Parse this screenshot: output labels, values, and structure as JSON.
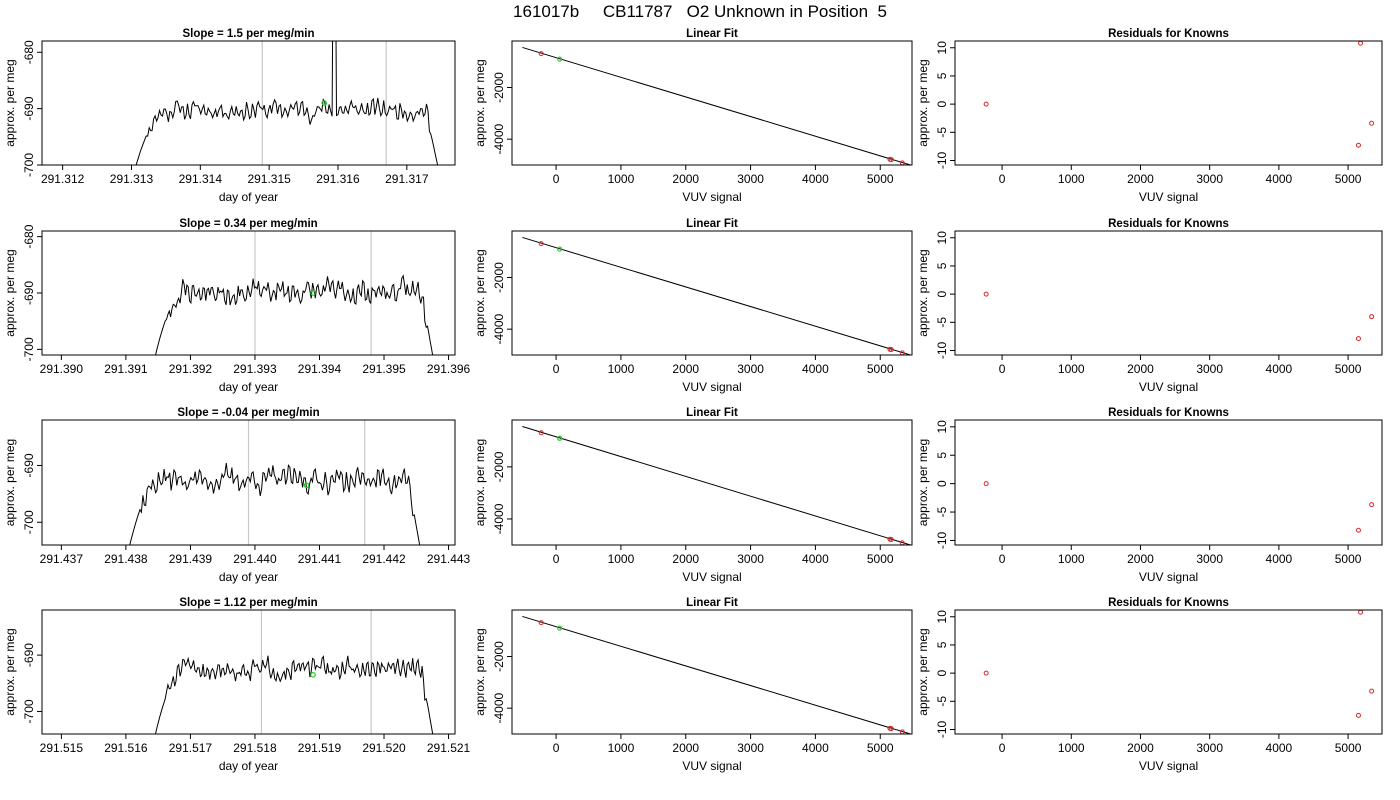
{
  "figure": {
    "title": "161017b     CB11787   O2 Unknown in Position  5"
  },
  "chart_data": [
    {
      "type": "line",
      "panel": "timeseries",
      "row": 0,
      "title": "Slope =  1.5  per meg/min",
      "xlabel": "day of year",
      "ylabel": "approx. per meg",
      "xlim": [
        291.3117,
        291.3177
      ],
      "ylim": [
        -700,
        -678
      ],
      "xticks": [
        "291.312",
        "291.313",
        "291.314",
        "291.315",
        "291.316",
        "291.317"
      ],
      "xtick_values": [
        291.312,
        291.313,
        291.314,
        291.315,
        291.316,
        291.317
      ],
      "yticks": [
        "-700",
        "-690",
        "-680"
      ],
      "ytick_values": [
        -700,
        -690,
        -680
      ],
      "trace_start": 291.313,
      "trace_end": 291.3175,
      "plateau_level": -690.2,
      "noise": 1.5,
      "spike_at": 291.31595,
      "vlines": [
        291.3149,
        291.3167
      ],
      "marker": {
        "x": 291.3158,
        "y": -689.0
      },
      "seed": 11,
      "spike": true
    },
    {
      "type": "line",
      "panel": "timeseries",
      "row": 1,
      "title": "Slope =  0.34  per meg/min",
      "xlabel": "day of year",
      "ylabel": "approx. per meg",
      "xlim": [
        291.3897,
        291.3961
      ],
      "ylim": [
        -701,
        -679
      ],
      "xticks": [
        "291.390",
        "291.391",
        "291.392",
        "291.393",
        "291.394",
        "291.395",
        "291.396"
      ],
      "xtick_values": [
        291.39,
        291.391,
        291.392,
        291.393,
        291.394,
        291.395,
        291.396
      ],
      "yticks": [
        "-700",
        "-690",
        "-680"
      ],
      "ytick_values": [
        -700,
        -690,
        -680
      ],
      "trace_start": 291.3914,
      "trace_end": 291.3958,
      "plateau_level": -689.8,
      "noise": 1.8,
      "spike_at": null,
      "vlines": [
        291.393,
        291.3948
      ],
      "marker": {
        "x": 291.3939,
        "y": -690.0
      },
      "seed": 23,
      "spike": false
    },
    {
      "type": "line",
      "panel": "timeseries",
      "row": 2,
      "title": "Slope =  -0.04  per meg/min",
      "xlabel": "day of year",
      "ylabel": "approx. per meg",
      "xlim": [
        291.4367,
        291.4431
      ],
      "ylim": [
        -704,
        -682
      ],
      "xticks": [
        "291.437",
        "291.438",
        "291.439",
        "291.440",
        "291.441",
        "291.442",
        "291.443"
      ],
      "xtick_values": [
        291.437,
        291.438,
        291.439,
        291.44,
        291.441,
        291.442,
        291.443
      ],
      "yticks": [
        "-700",
        "-690"
      ],
      "ytick_values": [
        -700,
        -690
      ],
      "trace_start": 291.438,
      "trace_end": 291.4426,
      "plateau_level": -692.5,
      "noise": 1.8,
      "spike_at": null,
      "vlines": [
        291.4399,
        291.4417
      ],
      "marker": {
        "x": 291.4408,
        "y": -693.5
      },
      "seed": 37,
      "spike": false
    },
    {
      "type": "line",
      "panel": "timeseries",
      "row": 3,
      "title": "Slope =  1.12  per meg/min",
      "xlabel": "day of year",
      "ylabel": "approx. per meg",
      "xlim": [
        291.5147,
        291.5211
      ],
      "ylim": [
        -704,
        -682
      ],
      "xticks": [
        "291.515",
        "291.516",
        "291.517",
        "291.518",
        "291.519",
        "291.520",
        "291.521"
      ],
      "xtick_values": [
        291.515,
        291.516,
        291.517,
        291.518,
        291.519,
        291.52,
        291.521
      ],
      "yticks": [
        "-700",
        "-690"
      ],
      "ytick_values": [
        -700,
        -690
      ],
      "trace_start": 291.5164,
      "trace_end": 291.5208,
      "plateau_level": -692.5,
      "noise": 1.5,
      "spike_at": null,
      "vlines": [
        291.5181,
        291.5198
      ],
      "marker": {
        "x": 291.5189,
        "y": -693.5
      },
      "seed": 51,
      "spike": false
    },
    {
      "type": "scatter",
      "panel": "linearfit",
      "row": 0,
      "title": "Linear Fit",
      "xlabel": "VUV signal",
      "ylabel": "approx. per meg",
      "xlim": [
        -680,
        5490
      ],
      "ylim": [
        -5000,
        -200
      ],
      "xticks": [
        "0",
        "1000",
        "2000",
        "3000",
        "4000",
        "5000"
      ],
      "xtick_values": [
        0,
        1000,
        2000,
        3000,
        4000,
        5000
      ],
      "yticks": [
        "-4000",
        "-2000"
      ],
      "ytick_values": [
        -4000,
        -2000
      ],
      "line": {
        "x": [
          -520,
          5480
        ],
        "y": [
          -450,
          -5010
        ]
      },
      "knowns": {
        "x": [
          -230,
          5150,
          5170,
          5340
        ],
        "y": [
          -690,
          -4780,
          -4790,
          -4920
        ]
      },
      "unknown": {
        "x": 55,
        "y": -900
      }
    },
    {
      "type": "scatter",
      "panel": "linearfit",
      "row": 1,
      "title": "Linear Fit",
      "xlabel": "VUV signal",
      "ylabel": "approx. per meg",
      "xlim": [
        -680,
        5490
      ],
      "ylim": [
        -5000,
        -200
      ],
      "xticks": [
        "0",
        "1000",
        "2000",
        "3000",
        "4000",
        "5000"
      ],
      "xtick_values": [
        0,
        1000,
        2000,
        3000,
        4000,
        5000
      ],
      "yticks": [
        "-4000",
        "-2000"
      ],
      "ytick_values": [
        -4000,
        -2000
      ],
      "line": {
        "x": [
          -520,
          5480
        ],
        "y": [
          -450,
          -5010
        ]
      },
      "knowns": {
        "x": [
          -230,
          5150,
          5170,
          5340
        ],
        "y": [
          -690,
          -4780,
          -4790,
          -4920
        ]
      },
      "unknown": {
        "x": 55,
        "y": -900
      }
    },
    {
      "type": "scatter",
      "panel": "linearfit",
      "row": 2,
      "title": "Linear Fit",
      "xlabel": "VUV signal",
      "ylabel": "approx. per meg",
      "xlim": [
        -680,
        5490
      ],
      "ylim": [
        -5000,
        -200
      ],
      "xticks": [
        "0",
        "1000",
        "2000",
        "3000",
        "4000",
        "5000"
      ],
      "xtick_values": [
        0,
        1000,
        2000,
        3000,
        4000,
        5000
      ],
      "yticks": [
        "-4000",
        "-2000"
      ],
      "ytick_values": [
        -4000,
        -2000
      ],
      "line": {
        "x": [
          -520,
          5480
        ],
        "y": [
          -450,
          -5010
        ]
      },
      "knowns": {
        "x": [
          -230,
          5150,
          5170,
          5340
        ],
        "y": [
          -690,
          -4780,
          -4790,
          -4920
        ]
      },
      "unknown": {
        "x": 55,
        "y": -900
      }
    },
    {
      "type": "scatter",
      "panel": "linearfit",
      "row": 3,
      "title": "Linear Fit",
      "xlabel": "VUV signal",
      "ylabel": "approx. per meg",
      "xlim": [
        -680,
        5490
      ],
      "ylim": [
        -5000,
        -200
      ],
      "xticks": [
        "0",
        "1000",
        "2000",
        "3000",
        "4000",
        "5000"
      ],
      "xtick_values": [
        0,
        1000,
        2000,
        3000,
        4000,
        5000
      ],
      "yticks": [
        "-4000",
        "-2000"
      ],
      "ytick_values": [
        -4000,
        -2000
      ],
      "line": {
        "x": [
          -520,
          5480
        ],
        "y": [
          -450,
          -5010
        ]
      },
      "knowns": {
        "x": [
          -230,
          5150,
          5170,
          5340
        ],
        "y": [
          -690,
          -4780,
          -4790,
          -4920
        ]
      },
      "unknown": {
        "x": 55,
        "y": -900
      }
    },
    {
      "type": "scatter",
      "panel": "residuals",
      "row": 0,
      "title": "Residuals for Knowns",
      "xlabel": "VUV signal",
      "ylabel": "approx. per meg",
      "xlim": [
        -680,
        5490
      ],
      "ylim": [
        -10.8,
        11.2
      ],
      "xticks": [
        "0",
        "1000",
        "2000",
        "3000",
        "4000",
        "5000"
      ],
      "xtick_values": [
        0,
        1000,
        2000,
        3000,
        4000,
        5000
      ],
      "yticks": [
        "-10",
        "-5",
        "0",
        "5",
        "10"
      ],
      "ytick_values": [
        -10,
        -5,
        0,
        5,
        10
      ],
      "points": {
        "x": [
          -230,
          5150,
          5180,
          5340
        ],
        "y": [
          0,
          -7.3,
          10.8,
          -3.4
        ]
      }
    },
    {
      "type": "scatter",
      "panel": "residuals",
      "row": 1,
      "title": "Residuals for Knowns",
      "xlabel": "VUV signal",
      "ylabel": "approx. per meg",
      "xlim": [
        -680,
        5490
      ],
      "ylim": [
        -10.8,
        11.2
      ],
      "xticks": [
        "0",
        "1000",
        "2000",
        "3000",
        "4000",
        "5000"
      ],
      "xtick_values": [
        0,
        1000,
        2000,
        3000,
        4000,
        5000
      ],
      "yticks": [
        "-10",
        "-5",
        "0",
        "5",
        "10"
      ],
      "ytick_values": [
        -10,
        -5,
        0,
        5,
        10
      ],
      "points": {
        "x": [
          -230,
          5150,
          5340
        ],
        "y": [
          0,
          -7.9,
          -4.0
        ]
      }
    },
    {
      "type": "scatter",
      "panel": "residuals",
      "row": 2,
      "title": "Residuals for Knowns",
      "xlabel": "VUV signal",
      "ylabel": "approx. per meg",
      "xlim": [
        -680,
        5490
      ],
      "ylim": [
        -10.8,
        11.2
      ],
      "xticks": [
        "0",
        "1000",
        "2000",
        "3000",
        "4000",
        "5000"
      ],
      "xtick_values": [
        0,
        1000,
        2000,
        3000,
        4000,
        5000
      ],
      "yticks": [
        "-10",
        "-5",
        "0",
        "5",
        "10"
      ],
      "ytick_values": [
        -10,
        -5,
        0,
        5,
        10
      ],
      "points": {
        "x": [
          -230,
          5150,
          5340
        ],
        "y": [
          0,
          -8.2,
          -3.7
        ]
      }
    },
    {
      "type": "scatter",
      "panel": "residuals",
      "row": 3,
      "title": "Residuals for Knowns",
      "xlabel": "VUV signal",
      "ylabel": "approx. per meg",
      "xlim": [
        -680,
        5490
      ],
      "ylim": [
        -10.8,
        11.2
      ],
      "xticks": [
        "0",
        "1000",
        "2000",
        "3000",
        "4000",
        "5000"
      ],
      "xtick_values": [
        0,
        1000,
        2000,
        3000,
        4000,
        5000
      ],
      "yticks": [
        "-10",
        "-5",
        "0",
        "5",
        "10"
      ],
      "ytick_values": [
        -10,
        -5,
        0,
        5,
        10
      ],
      "points": {
        "x": [
          -230,
          5150,
          5180,
          5340
        ],
        "y": [
          0,
          -7.5,
          10.8,
          -3.2
        ]
      }
    }
  ]
}
